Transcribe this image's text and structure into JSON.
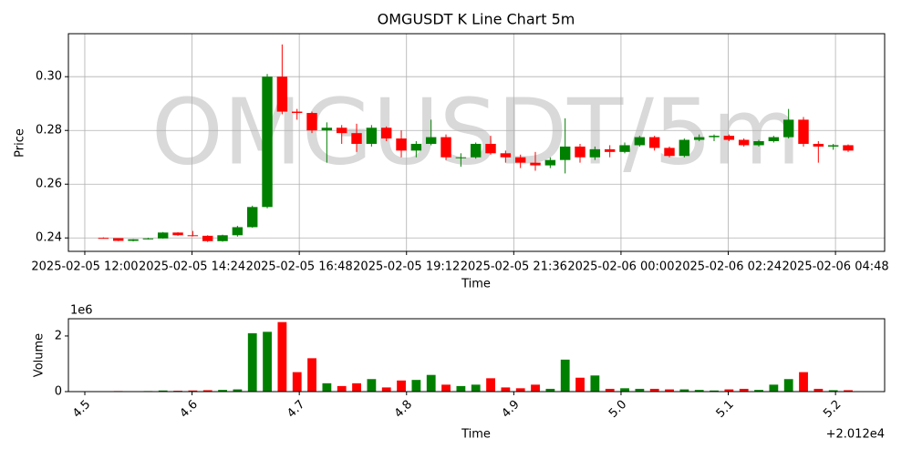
{
  "chart_data": [
    {
      "type": "candlestick",
      "title": "OMGUSDT K Line Chart 5m",
      "watermark": "OMGUSDT/5m",
      "x_label": "Time",
      "y_label": "Price",
      "up_color": "green",
      "down_color": "red",
      "grid": true,
      "xlim": [
        "2025-02-05 11:38",
        "2025-02-06 05:54"
      ],
      "xticks": [
        "2025-02-05 12:00",
        "2025-02-05 14:24",
        "2025-02-05 16:48",
        "2025-02-05 19:12",
        "2025-02-05 21:36",
        "2025-02-06 00:00",
        "2025-02-06 02:24",
        "2025-02-06 04:48"
      ],
      "ylim": [
        0.235,
        0.316
      ],
      "yticks": [
        0.24,
        0.26,
        0.28,
        {
          "value": 0.3,
          "label": "0.30"
        }
      ],
      "x": [
        "2025-02-05 12:25",
        "2025-02-05 12:45",
        "2025-02-05 13:05",
        "2025-02-05 13:25",
        "2025-02-05 13:45",
        "2025-02-05 14:05",
        "2025-02-05 14:25",
        "2025-02-05 14:45",
        "2025-02-05 15:05",
        "2025-02-05 15:25",
        "2025-02-05 15:45",
        "2025-02-05 16:05",
        "2025-02-05 16:25",
        "2025-02-05 16:45",
        "2025-02-05 17:05",
        "2025-02-05 17:25",
        "2025-02-05 17:45",
        "2025-02-05 18:05",
        "2025-02-05 18:25",
        "2025-02-05 18:45",
        "2025-02-05 19:05",
        "2025-02-05 19:25",
        "2025-02-05 19:45",
        "2025-02-05 20:05",
        "2025-02-05 20:25",
        "2025-02-05 20:45",
        "2025-02-05 21:05",
        "2025-02-05 21:25",
        "2025-02-05 21:45",
        "2025-02-05 22:05",
        "2025-02-05 22:25",
        "2025-02-05 22:45",
        "2025-02-05 23:05",
        "2025-02-05 23:25",
        "2025-02-05 23:45",
        "2025-02-06 00:05",
        "2025-02-06 00:25",
        "2025-02-06 00:45",
        "2025-02-06 01:05",
        "2025-02-06 01:25",
        "2025-02-06 01:45",
        "2025-02-06 02:05",
        "2025-02-06 02:25",
        "2025-02-06 02:45",
        "2025-02-06 03:05",
        "2025-02-06 03:25",
        "2025-02-06 03:45",
        "2025-02-06 04:05",
        "2025-02-06 04:25",
        "2025-02-06 04:45",
        "2025-02-06 05:05"
      ],
      "open": [
        0.24,
        0.2399,
        0.2389,
        0.2395,
        0.2398,
        0.242,
        0.241,
        0.2408,
        0.2388,
        0.241,
        0.244,
        0.2515,
        0.3,
        0.287,
        0.2865,
        0.28,
        0.281,
        0.279,
        0.275,
        0.281,
        0.277,
        0.2725,
        0.275,
        0.2775,
        0.27,
        0.27,
        0.275,
        0.2715,
        0.27,
        0.268,
        0.267,
        0.269,
        0.274,
        0.27,
        0.273,
        0.272,
        0.2745,
        0.2775,
        0.2735,
        0.2705,
        0.2765,
        0.2775,
        0.278,
        0.2765,
        0.2745,
        0.276,
        0.2775,
        0.284,
        0.275,
        0.274,
        0.2745
      ],
      "high": [
        0.2402,
        0.2399,
        0.2396,
        0.24,
        0.2422,
        0.2421,
        0.2426,
        0.241,
        0.2412,
        0.2445,
        0.252,
        0.301,
        0.312,
        0.288,
        0.287,
        0.283,
        0.282,
        0.2825,
        0.282,
        0.2815,
        0.28,
        0.276,
        0.284,
        0.2785,
        0.2715,
        0.2755,
        0.278,
        0.2725,
        0.271,
        0.272,
        0.27,
        0.2845,
        0.275,
        0.274,
        0.2745,
        0.2755,
        0.278,
        0.278,
        0.274,
        0.277,
        0.2785,
        0.2785,
        0.2785,
        0.277,
        0.2765,
        0.278,
        0.288,
        0.285,
        0.276,
        0.275,
        0.2748
      ],
      "low": [
        0.2398,
        0.2388,
        0.2387,
        0.2394,
        0.2397,
        0.2408,
        0.2406,
        0.2385,
        0.2386,
        0.2405,
        0.2438,
        0.251,
        0.286,
        0.284,
        0.279,
        0.268,
        0.275,
        0.272,
        0.274,
        0.276,
        0.27,
        0.27,
        0.2745,
        0.269,
        0.2665,
        0.2695,
        0.271,
        0.268,
        0.266,
        0.265,
        0.266,
        0.264,
        0.268,
        0.269,
        0.27,
        0.2715,
        0.274,
        0.2725,
        0.27,
        0.27,
        0.276,
        0.276,
        0.276,
        0.274,
        0.274,
        0.2755,
        0.277,
        0.274,
        0.268,
        0.2728,
        0.272
      ],
      "close": [
        0.2399,
        0.2389,
        0.2395,
        0.2398,
        0.242,
        0.241,
        0.2408,
        0.2388,
        0.241,
        0.244,
        0.2515,
        0.3,
        0.287,
        0.2865,
        0.28,
        0.281,
        0.279,
        0.275,
        0.281,
        0.277,
        0.2725,
        0.275,
        0.2775,
        0.27,
        0.27,
        0.275,
        0.2715,
        0.27,
        0.268,
        0.267,
        0.269,
        0.274,
        0.27,
        0.273,
        0.272,
        0.2745,
        0.2775,
        0.2735,
        0.2705,
        0.2765,
        0.2775,
        0.278,
        0.2765,
        0.2745,
        0.276,
        0.2775,
        0.284,
        0.275,
        0.274,
        0.2745,
        0.2725
      ]
    },
    {
      "type": "volume",
      "x_label": "Time",
      "y_label": "Volume",
      "y_offset": "1e6",
      "x_offset": "+2.012e4",
      "grid": false,
      "xlim": [
        20124.4847,
        20125.2458
      ],
      "xticks": [
        {
          "value": 20124.5,
          "label": "4.5"
        },
        {
          "value": 20124.6,
          "label": "4.6"
        },
        {
          "value": 20124.7,
          "label": "4.7"
        },
        {
          "value": 20124.8,
          "label": "4.8"
        },
        {
          "value": 20124.9,
          "label": "4.9"
        },
        {
          "value": 20125.0,
          "label": "5.0"
        },
        {
          "value": 20125.1,
          "label": "5.1"
        },
        {
          "value": 20125.2,
          "label": "5.2"
        }
      ],
      "ylim": [
        0,
        2620000
      ],
      "yticks": [
        0,
        {
          "value": 2000000,
          "label": "2"
        }
      ],
      "values": [
        10000,
        20000,
        15000,
        20000,
        40000,
        30000,
        40000,
        50000,
        60000,
        80000,
        2100000,
        2150000,
        2500000,
        700000,
        1200000,
        300000,
        200000,
        300000,
        450000,
        150000,
        400000,
        420000,
        600000,
        250000,
        200000,
        250000,
        480000,
        150000,
        120000,
        250000,
        100000,
        1150000,
        500000,
        580000,
        100000,
        120000,
        100000,
        100000,
        80000,
        80000,
        60000,
        40000,
        80000,
        100000,
        60000,
        250000,
        450000,
        700000,
        100000,
        50000,
        50000
      ]
    }
  ]
}
